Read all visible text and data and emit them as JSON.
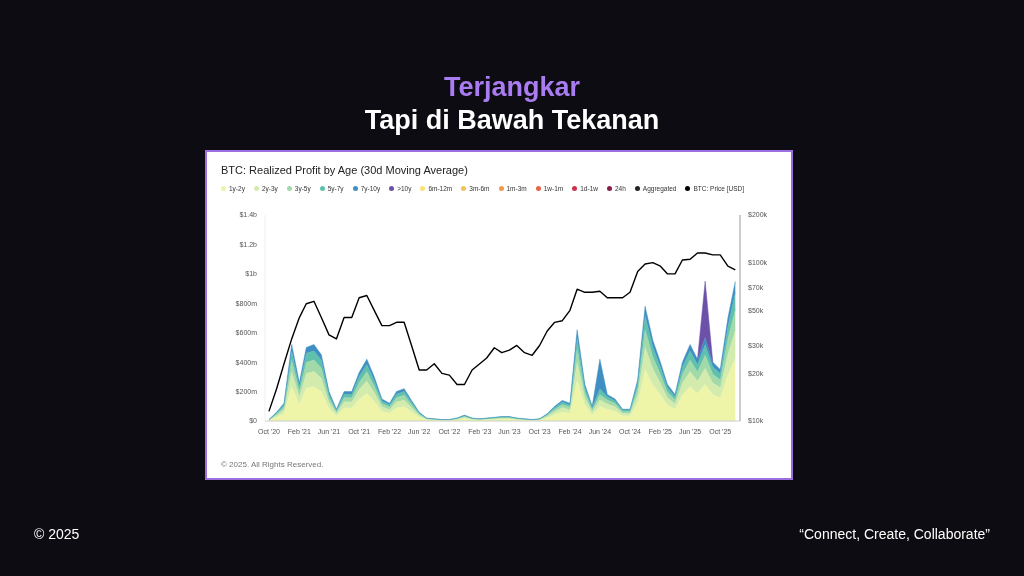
{
  "chart_data": {
    "type": "area",
    "stacked": true,
    "title": "BTC: Realized Profit by Age (30d Moving Average)",
    "annotations": [
      "Terjangkar",
      "Tapi di Bawah Tekanan",
      "© 2025. All Rights Reserved.",
      "© 2025",
      "“Connect, Create, Collaborate”"
    ],
    "x": [
      "2020-10",
      "2020-11",
      "2020-12",
      "2021-01",
      "2021-02",
      "2021-03",
      "2021-04",
      "2021-05",
      "2021-06",
      "2021-07",
      "2021-08",
      "2021-09",
      "2021-10",
      "2021-11",
      "2021-12",
      "2022-01",
      "2022-02",
      "2022-03",
      "2022-04",
      "2022-05",
      "2022-06",
      "2022-07",
      "2022-08",
      "2022-09",
      "2022-10",
      "2022-11",
      "2022-12",
      "2023-01",
      "2023-02",
      "2023-03",
      "2023-04",
      "2023-05",
      "2023-06",
      "2023-07",
      "2023-08",
      "2023-09",
      "2023-10",
      "2023-11",
      "2023-12",
      "2024-01",
      "2024-02",
      "2024-03",
      "2024-04",
      "2024-05",
      "2024-06",
      "2024-07",
      "2024-08",
      "2024-09",
      "2024-10",
      "2024-11",
      "2024-12",
      "2025-01",
      "2025-02",
      "2025-03",
      "2025-04",
      "2025-05",
      "2025-06",
      "2025-07",
      "2025-08",
      "2025-09",
      "2025-10",
      "2025-11",
      "2025-12"
    ],
    "series": [
      {
        "name": "1y-2y",
        "color": "#eef5a8",
        "values": [
          5000000,
          27000000,
          54000000,
          234000000,
          117000000,
          225000000,
          234000000,
          203000000,
          90000000,
          36000000,
          90000000,
          90000000,
          149000000,
          189000000,
          135000000,
          68000000,
          54000000,
          90000000,
          99000000,
          63000000,
          27000000,
          9000000,
          7000000,
          5000000,
          5000000,
          9000000,
          18000000,
          9000000,
          7000000,
          9000000,
          11000000,
          14000000,
          14000000,
          9000000,
          7000000,
          5000000,
          7000000,
          22000000,
          45000000,
          63000000,
          54000000,
          279000000,
          112000000,
          45000000,
          100000000,
          81000000,
          68000000,
          36000000,
          36000000,
          126000000,
          351000000,
          248000000,
          180000000,
          112000000,
          81000000,
          180000000,
          234000000,
          189000000,
          250000000,
          180000000,
          158000000,
          315000000,
          428000000
        ]
      },
      {
        "name": "2y-3y",
        "color": "#d3ecae",
        "values": [
          2000000,
          12000000,
          24000000,
          104000000,
          52000000,
          100000000,
          104000000,
          90000000,
          40000000,
          16000000,
          40000000,
          40000000,
          66000000,
          84000000,
          60000000,
          30000000,
          24000000,
          40000000,
          44000000,
          28000000,
          12000000,
          4000000,
          3000000,
          2000000,
          2000000,
          4000000,
          8000000,
          4000000,
          3000000,
          4000000,
          5000000,
          6000000,
          6000000,
          4000000,
          3000000,
          2000000,
          3000000,
          10000000,
          20000000,
          28000000,
          24000000,
          124000000,
          50000000,
          20000000,
          45000000,
          36000000,
          30000000,
          16000000,
          16000000,
          56000000,
          156000000,
          110000000,
          80000000,
          50000000,
          36000000,
          80000000,
          104000000,
          84000000,
          110000000,
          80000000,
          70000000,
          140000000,
          190000000
        ]
      },
      {
        "name": "3y-5y",
        "color": "#a2d9a8",
        "values": [
          1000000,
          9000000,
          18000000,
          78000000,
          39000000,
          75000000,
          78000000,
          67000000,
          30000000,
          12000000,
          30000000,
          30000000,
          49000000,
          63000000,
          45000000,
          22000000,
          18000000,
          30000000,
          33000000,
          21000000,
          9000000,
          3000000,
          2000000,
          1000000,
          1000000,
          3000000,
          6000000,
          3000000,
          2000000,
          3000000,
          4000000,
          4000000,
          4000000,
          3000000,
          2000000,
          1000000,
          2000000,
          8000000,
          15000000,
          21000000,
          18000000,
          93000000,
          38000000,
          15000000,
          35000000,
          27000000,
          22000000,
          12000000,
          12000000,
          42000000,
          117000000,
          82000000,
          60000000,
          38000000,
          27000000,
          60000000,
          78000000,
          63000000,
          90000000,
          60000000,
          52000000,
          105000000,
          142000000
        ]
      },
      {
        "name": "5y-7y",
        "color": "#5fc0ae",
        "values": [
          1000000,
          7000000,
          14000000,
          62000000,
          31000000,
          60000000,
          62000000,
          54000000,
          24000000,
          10000000,
          24000000,
          24000000,
          40000000,
          50000000,
          36000000,
          18000000,
          14000000,
          24000000,
          26000000,
          17000000,
          7000000,
          2000000,
          2000000,
          1000000,
          1000000,
          2000000,
          5000000,
          2000000,
          2000000,
          2000000,
          3000000,
          4000000,
          4000000,
          2000000,
          2000000,
          1000000,
          2000000,
          6000000,
          12000000,
          17000000,
          14000000,
          74000000,
          30000000,
          12000000,
          40000000,
          22000000,
          18000000,
          10000000,
          10000000,
          34000000,
          94000000,
          66000000,
          48000000,
          30000000,
          22000000,
          48000000,
          62000000,
          50000000,
          70000000,
          48000000,
          42000000,
          84000000,
          114000000
        ]
      },
      {
        "name": "7y-10y",
        "color": "#3f8fc2",
        "values": [
          1000000,
          5000000,
          10000000,
          42000000,
          21000000,
          40000000,
          42000000,
          36000000,
          16000000,
          6000000,
          16000000,
          16000000,
          26000000,
          34000000,
          24000000,
          12000000,
          10000000,
          16000000,
          18000000,
          11000000,
          5000000,
          2000000,
          1000000,
          1000000,
          1000000,
          2000000,
          3000000,
          2000000,
          1000000,
          2000000,
          2000000,
          2000000,
          2000000,
          2000000,
          1000000,
          1000000,
          1000000,
          4000000,
          8000000,
          11000000,
          10000000,
          50000000,
          20000000,
          8000000,
          200000000,
          14000000,
          12000000,
          6000000,
          6000000,
          22000000,
          62000000,
          44000000,
          32000000,
          20000000,
          14000000,
          32000000,
          42000000,
          34000000,
          50000000,
          32000000,
          28000000,
          56000000,
          76000000
        ]
      },
      {
        "name": ">10y",
        "color": "#6b52a8",
        "values": [
          null,
          null,
          null,
          null,
          null,
          null,
          null,
          null,
          null,
          null,
          null,
          null,
          null,
          null,
          null,
          null,
          null,
          null,
          null,
          null,
          null,
          null,
          null,
          null,
          null,
          null,
          null,
          null,
          null,
          null,
          null,
          null,
          null,
          null,
          null,
          null,
          null,
          null,
          null,
          null,
          null,
          null,
          null,
          null,
          null,
          null,
          null,
          null,
          null,
          null,
          null,
          null,
          null,
          null,
          null,
          null,
          null,
          0,
          380000000,
          0,
          null,
          null,
          null
        ]
      },
      {
        "name": "6m-12m",
        "color": "#f6e27a",
        "values": [
          null,
          null,
          null,
          null,
          null,
          null,
          null,
          null,
          null,
          null,
          null,
          null,
          null,
          null,
          null,
          null,
          null,
          null,
          null,
          null,
          null,
          null,
          null,
          null,
          null,
          null,
          null,
          null,
          null,
          null,
          null,
          null,
          null,
          null,
          null,
          null,
          null,
          null,
          null,
          null,
          null,
          null,
          null,
          null,
          null,
          null,
          null,
          null,
          null,
          null,
          null,
          null,
          null,
          null,
          null,
          null,
          null,
          null,
          null,
          null,
          null,
          null,
          null
        ]
      },
      {
        "name": "3m-6m",
        "color": "#f3c250",
        "values": [
          null,
          null,
          null,
          null,
          null,
          null,
          null,
          null,
          null,
          null,
          null,
          null,
          null,
          null,
          null,
          null,
          null,
          null,
          null,
          null,
          null,
          null,
          null,
          null,
          null,
          null,
          null,
          null,
          null,
          null,
          null,
          null,
          null,
          null,
          null,
          null,
          null,
          null,
          null,
          null,
          null,
          null,
          null,
          null,
          null,
          null,
          null,
          null,
          null,
          null,
          null,
          null,
          null,
          null,
          null,
          null,
          null,
          null,
          null,
          null,
          null,
          null,
          null
        ]
      },
      {
        "name": "1m-3m",
        "color": "#f19a48",
        "values": [
          null,
          null,
          null,
          null,
          null,
          null,
          null,
          null,
          null,
          null,
          null,
          null,
          null,
          null,
          null,
          null,
          null,
          null,
          null,
          null,
          null,
          null,
          null,
          null,
          null,
          null,
          null,
          null,
          null,
          null,
          null,
          null,
          null,
          null,
          null,
          null,
          null,
          null,
          null,
          null,
          null,
          null,
          null,
          null,
          null,
          null,
          null,
          null,
          null,
          null,
          null,
          null,
          null,
          null,
          null,
          null,
          null,
          null,
          null,
          null,
          null,
          null,
          null
        ]
      },
      {
        "name": "1w-1m",
        "color": "#e6654a",
        "values": [
          null,
          null,
          null,
          null,
          null,
          null,
          null,
          null,
          null,
          null,
          null,
          null,
          null,
          null,
          null,
          null,
          null,
          null,
          null,
          null,
          null,
          null,
          null,
          null,
          null,
          null,
          null,
          null,
          null,
          null,
          null,
          null,
          null,
          null,
          null,
          null,
          null,
          null,
          null,
          null,
          null,
          null,
          null,
          null,
          null,
          null,
          null,
          null,
          null,
          null,
          null,
          null,
          null,
          null,
          null,
          null,
          null,
          null,
          null,
          null,
          null,
          null,
          null
        ]
      },
      {
        "name": "1d-1w",
        "color": "#c8344c",
        "values": [
          null,
          null,
          null,
          null,
          null,
          null,
          null,
          null,
          null,
          null,
          null,
          null,
          null,
          null,
          null,
          null,
          null,
          null,
          null,
          null,
          null,
          null,
          null,
          null,
          null,
          null,
          null,
          null,
          null,
          null,
          null,
          null,
          null,
          null,
          null,
          null,
          null,
          null,
          null,
          null,
          null,
          null,
          null,
          null,
          null,
          null,
          null,
          null,
          null,
          null,
          null,
          null,
          null,
          null,
          null,
          null,
          null,
          null,
          null,
          null,
          null,
          null,
          null
        ]
      },
      {
        "name": "24h",
        "color": "#8a1c4c",
        "values": [
          null,
          null,
          null,
          null,
          null,
          null,
          null,
          null,
          null,
          null,
          null,
          null,
          null,
          null,
          null,
          null,
          null,
          null,
          null,
          null,
          null,
          null,
          null,
          null,
          null,
          null,
          null,
          null,
          null,
          null,
          null,
          null,
          null,
          null,
          null,
          null,
          null,
          null,
          null,
          null,
          null,
          null,
          null,
          null,
          null,
          null,
          null,
          null,
          null,
          null,
          null,
          null,
          null,
          null,
          null,
          null,
          null,
          null,
          null,
          null,
          null,
          null,
          null
        ]
      },
      {
        "name": "Aggregated",
        "color": "#222222",
        "values": [
          null,
          null,
          null,
          null,
          null,
          null,
          null,
          null,
          null,
          null,
          null,
          null,
          null,
          null,
          null,
          null,
          null,
          null,
          null,
          null,
          null,
          null,
          null,
          null,
          null,
          null,
          null,
          null,
          null,
          null,
          null,
          null,
          null,
          null,
          null,
          null,
          null,
          null,
          null,
          null,
          null,
          null,
          null,
          null,
          null,
          null,
          null,
          null,
          null,
          null,
          null,
          null,
          null,
          null,
          null,
          null,
          null,
          null,
          null,
          null,
          null,
          null,
          null
        ]
      },
      {
        "name": "BTC: Price [USD]",
        "type": "line",
        "axis": "y2",
        "color": "#000000",
        "values": [
          11500,
          16000,
          23000,
          33000,
          45000,
          55000,
          57000,
          45000,
          35000,
          33000,
          45000,
          45000,
          60000,
          62000,
          50000,
          40000,
          40000,
          42000,
          42000,
          30000,
          21000,
          21000,
          23000,
          20000,
          19500,
          17000,
          17000,
          21000,
          23000,
          25000,
          29000,
          27000,
          28000,
          30000,
          27000,
          26000,
          30000,
          37000,
          42000,
          43000,
          50000,
          68000,
          65000,
          65000,
          66000,
          60000,
          60000,
          60000,
          65000,
          88000,
          98000,
          100000,
          95000,
          85000,
          85000,
          104000,
          105000,
          115000,
          115000,
          112000,
          112000,
          95000,
          90000
        ]
      }
    ],
    "xlim": [
      "2020-09-15",
      "2025-12-20"
    ],
    "xticks": [
      {
        "value": "2020-10",
        "label": "Oct '20"
      },
      {
        "value": "2021-02",
        "label": "Feb '21"
      },
      {
        "value": "2021-06",
        "label": "Jun '21"
      },
      {
        "value": "2021-10",
        "label": "Oct '21"
      },
      {
        "value": "2022-02",
        "label": "Feb '22"
      },
      {
        "value": "2022-06",
        "label": "Jun '22"
      },
      {
        "value": "2022-10",
        "label": "Oct '22"
      },
      {
        "value": "2023-02",
        "label": "Feb '23"
      },
      {
        "value": "2023-06",
        "label": "Jun '23"
      },
      {
        "value": "2023-10",
        "label": "Oct '23"
      },
      {
        "value": "2024-02",
        "label": "Feb '24"
      },
      {
        "value": "2024-06",
        "label": "Jun '24"
      },
      {
        "value": "2024-10",
        "label": "Oct '24"
      },
      {
        "value": "2025-02",
        "label": "Feb '25"
      },
      {
        "value": "2025-06",
        "label": "Jun '25"
      },
      {
        "value": "2025-10",
        "label": "Oct '25"
      }
    ],
    "ylim": [
      0,
      1400000000
    ],
    "yticks": [
      {
        "value": 0,
        "label": "$0"
      },
      {
        "value": 200000000,
        "label": "$200m"
      },
      {
        "value": 400000000,
        "label": "$400m"
      },
      {
        "value": 600000000,
        "label": "$600m"
      },
      {
        "value": 800000000,
        "label": "$800m"
      },
      {
        "value": 1000000000,
        "label": "$1b"
      },
      {
        "value": 1200000000,
        "label": "$1.2b"
      },
      {
        "value": 1400000000,
        "label": "$1.4b"
      }
    ],
    "y2lim": [
      10000,
      200000
    ],
    "y2ticks": [
      {
        "value": 10000,
        "label": "$10k"
      },
      {
        "value": 20000,
        "label": "$20k"
      },
      {
        "value": 30000,
        "label": "$30k"
      },
      {
        "value": 50000,
        "label": "$50k"
      },
      {
        "value": 70000,
        "label": "$70k"
      },
      {
        "value": 100000,
        "label": "$100k"
      },
      {
        "value": 200000,
        "label": "$200k"
      }
    ],
    "log": "y2",
    "grid": false,
    "legend": "top left",
    "marker": "none",
    "line_style": "solid"
  }
}
